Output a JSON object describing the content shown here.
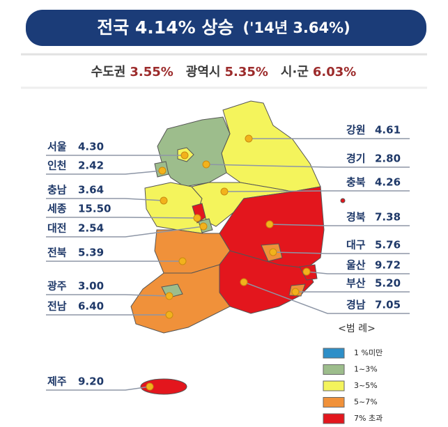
{
  "header": {
    "title_main": "전국 4.14% 상승",
    "title_sub": "('14년 3.64%)"
  },
  "summary": [
    {
      "name": "수도권",
      "value": "3.55%"
    },
    {
      "name": "광역시",
      "value": "5.35%"
    },
    {
      "name": "시·군",
      "value": "6.03%"
    }
  ],
  "regions": [
    {
      "name": "서울",
      "value": "4.30"
    },
    {
      "name": "인천",
      "value": "2.42"
    },
    {
      "name": "충남",
      "value": "3.64"
    },
    {
      "name": "세종",
      "value": "15.50"
    },
    {
      "name": "대전",
      "value": "2.54"
    },
    {
      "name": "전북",
      "value": "5.39"
    },
    {
      "name": "광주",
      "value": "3.00"
    },
    {
      "name": "전남",
      "value": "6.40"
    },
    {
      "name": "제주",
      "value": "9.20"
    },
    {
      "name": "강원",
      "value": "4.61"
    },
    {
      "name": "경기",
      "value": "2.80"
    },
    {
      "name": "충북",
      "value": "4.26"
    },
    {
      "name": "경북",
      "value": "7.38"
    },
    {
      "name": "대구",
      "value": "5.76"
    },
    {
      "name": "울산",
      "value": "9.72"
    },
    {
      "name": "부산",
      "value": "5.20"
    },
    {
      "name": "경남",
      "value": "7.05"
    }
  ],
  "legend": {
    "title": "<범 례>",
    "items": [
      {
        "label": "1 %미만",
        "color": "#2e8fc8"
      },
      {
        "label": "1~3%",
        "color": "#9dbd8c"
      },
      {
        "label": "3~5%",
        "color": "#f4f45c"
      },
      {
        "label": "5~7%",
        "color": "#f0913a"
      },
      {
        "label": "7% 초과",
        "color": "#e3161d"
      }
    ]
  }
}
